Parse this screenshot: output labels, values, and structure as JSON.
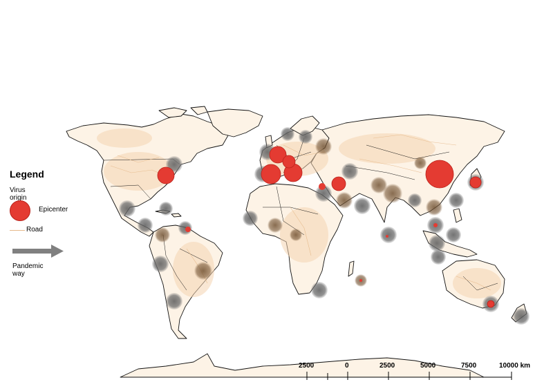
{
  "legend": {
    "title": "Legend",
    "virus_origin_label": "Virus origin",
    "epicenter_label": "Epicenter",
    "road_label": "Road",
    "pandemic_way_label": "Pandemic way"
  },
  "scale_bar": {
    "labels": [
      "2500",
      "0",
      "2500",
      "5000",
      "7500",
      "10000 km"
    ]
  },
  "colors": {
    "epicenter": "#e43b32",
    "spread_circle": "#6e6e6e",
    "road": "#e5b98a",
    "land": "#fdf3e6",
    "arrow": "#808080"
  },
  "icons": {
    "pandemic_way": "arrow-right-icon",
    "epicenter": "red-circle-icon",
    "road": "line-icon"
  }
}
